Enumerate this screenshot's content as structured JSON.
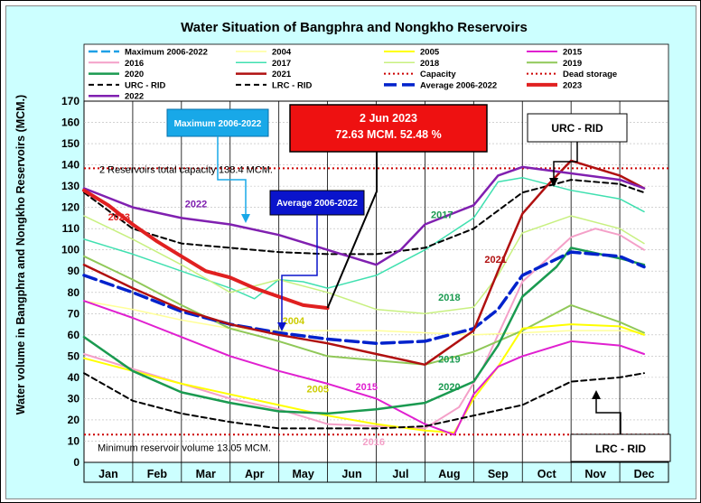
{
  "chart_data": {
    "type": "line",
    "title": "Water Situation of Bangphra and Nongkho Reservoirs",
    "ylabel": "Water volume in Bangphra and Nongkho Reservoirs (MCM.)",
    "xlabel": "",
    "ylim": [
      0,
      170
    ],
    "yticks": [
      0,
      10,
      20,
      30,
      40,
      50,
      60,
      70,
      80,
      90,
      100,
      110,
      120,
      130,
      140,
      150,
      160,
      170
    ],
    "months": [
      "Jan",
      "Feb",
      "Mar",
      "Apr",
      "May",
      "Jun",
      "Jul",
      "Aug",
      "Sep",
      "Oct",
      "Nov",
      "Dec"
    ],
    "grid": true,
    "legend_position": "top",
    "legend": [
      {
        "name": "Maximum 2006-2022",
        "color": "#1ea0e6",
        "dash": "10,4",
        "width": 2.5
      },
      {
        "name": "2004",
        "color": "#ffff99",
        "dash": "",
        "width": 1.5
      },
      {
        "name": "2005",
        "color": "#ffff00",
        "dash": "",
        "width": 2
      },
      {
        "name": "2015",
        "color": "#e020d0",
        "dash": "",
        "width": 2
      },
      {
        "name": "2016",
        "color": "#f4a0c8",
        "dash": "",
        "width": 2
      },
      {
        "name": "2017",
        "color": "#40e0b0",
        "dash": "",
        "width": 1.5
      },
      {
        "name": "2018",
        "color": "#c8f080",
        "dash": "",
        "width": 1.5
      },
      {
        "name": "2019",
        "color": "#90c858",
        "dash": "",
        "width": 2
      },
      {
        "name": "2020",
        "color": "#1a9a50",
        "dash": "",
        "width": 2.5
      },
      {
        "name": "2021",
        "color": "#b01010",
        "dash": "",
        "width": 2.5
      },
      {
        "name": "Capacity",
        "color": "#cc0000",
        "dash": "2,3",
        "width": 2
      },
      {
        "name": "Dead storage",
        "color": "#cc0000",
        "dash": "2,3",
        "width": 2
      },
      {
        "name": "URC - RID",
        "color": "#000000",
        "dash": "6,4",
        "width": 2
      },
      {
        "name": "LRC - RID",
        "color": "#000000",
        "dash": "6,4",
        "width": 2
      },
      {
        "name": "Average 2006-2022",
        "color": "#0022cc",
        "dash": "14,6",
        "width": 3.5
      },
      {
        "name": "2023",
        "color": "#e02020",
        "dash": "",
        "width": 4
      },
      {
        "name": "2022",
        "color": "#8020b0",
        "dash": "",
        "width": 2.5
      }
    ],
    "series": [
      {
        "name": "2016",
        "color": "#f4a0c8",
        "width": 2,
        "dash": "",
        "values": [
          [
            0,
            51
          ],
          [
            1,
            44
          ],
          [
            2,
            37
          ],
          [
            3,
            30
          ],
          [
            4,
            25
          ],
          [
            5,
            18
          ],
          [
            6,
            17
          ],
          [
            7,
            16
          ],
          [
            7.7,
            26
          ],
          [
            8.2,
            45
          ],
          [
            9,
            85
          ],
          [
            10,
            106
          ],
          [
            10.5,
            110
          ],
          [
            11,
            107
          ],
          [
            11.5,
            100
          ]
        ]
      },
      {
        "name": "2004",
        "color": "#ffff99",
        "width": 1.5,
        "dash": "",
        "values": [
          [
            0,
            76
          ],
          [
            1,
            72
          ],
          [
            2,
            67
          ],
          [
            3,
            63
          ],
          [
            4,
            62
          ],
          [
            5,
            62
          ],
          [
            6,
            62
          ],
          [
            7,
            61
          ],
          [
            8,
            60
          ],
          [
            9,
            61
          ],
          [
            10,
            62
          ],
          [
            11,
            62
          ],
          [
            11.5,
            61
          ]
        ]
      },
      {
        "name": "2017",
        "color": "#40e0b0",
        "width": 1.5,
        "dash": "",
        "values": [
          [
            0,
            105
          ],
          [
            1,
            98
          ],
          [
            2,
            90
          ],
          [
            3,
            82
          ],
          [
            3.5,
            77
          ],
          [
            4,
            86
          ],
          [
            4.5,
            85
          ],
          [
            5,
            82
          ],
          [
            6,
            88
          ],
          [
            7,
            100
          ],
          [
            8,
            115
          ],
          [
            8.5,
            132
          ],
          [
            9,
            134
          ],
          [
            10,
            128
          ],
          [
            11,
            124
          ],
          [
            11.5,
            118
          ]
        ]
      },
      {
        "name": "2018",
        "color": "#c8f080",
        "width": 1.5,
        "dash": "",
        "values": [
          [
            0,
            116
          ],
          [
            1,
            105
          ],
          [
            2,
            93
          ],
          [
            3,
            80
          ],
          [
            4,
            86
          ],
          [
            5,
            80
          ],
          [
            6,
            72
          ],
          [
            7,
            70
          ],
          [
            8,
            73
          ],
          [
            8.5,
            88
          ],
          [
            9,
            108
          ],
          [
            10,
            116
          ],
          [
            11,
            110
          ],
          [
            11.5,
            103
          ]
        ]
      },
      {
        "name": "2019",
        "color": "#90c858",
        "width": 2,
        "dash": "",
        "values": [
          [
            0,
            97
          ],
          [
            1,
            86
          ],
          [
            2,
            74
          ],
          [
            3,
            63
          ],
          [
            4,
            57
          ],
          [
            5,
            50
          ],
          [
            6,
            48
          ],
          [
            7,
            46
          ],
          [
            8,
            52
          ],
          [
            9,
            62
          ],
          [
            10,
            74
          ],
          [
            11,
            66
          ],
          [
            11.5,
            61
          ]
        ]
      },
      {
        "name": "2005",
        "color": "#ffff00",
        "width": 2,
        "dash": "",
        "values": [
          [
            0,
            49
          ],
          [
            1,
            43
          ],
          [
            2,
            37
          ],
          [
            3,
            32
          ],
          [
            4,
            27
          ],
          [
            5,
            22
          ],
          [
            6,
            18
          ],
          [
            7,
            15
          ],
          [
            7.6,
            14
          ],
          [
            8,
            30
          ],
          [
            8.5,
            45
          ],
          [
            9,
            63
          ],
          [
            10,
            65
          ],
          [
            11,
            64
          ],
          [
            11.5,
            60
          ]
        ]
      },
      {
        "name": "2015",
        "color": "#e020d0",
        "width": 2,
        "dash": "",
        "values": [
          [
            0,
            76
          ],
          [
            1,
            68
          ],
          [
            2,
            59
          ],
          [
            3,
            50
          ],
          [
            4,
            43
          ],
          [
            5,
            37
          ],
          [
            6,
            30
          ],
          [
            7,
            18
          ],
          [
            7.6,
            13
          ],
          [
            8,
            32
          ],
          [
            8.5,
            45
          ],
          [
            9,
            50
          ],
          [
            10,
            57
          ],
          [
            11,
            55
          ],
          [
            11.5,
            51
          ]
        ]
      },
      {
        "name": "2020",
        "color": "#1a9a50",
        "width": 2.5,
        "dash": "",
        "values": [
          [
            0,
            59
          ],
          [
            1,
            43
          ],
          [
            2,
            33
          ],
          [
            3,
            28
          ],
          [
            4,
            24
          ],
          [
            5,
            23
          ],
          [
            6,
            25
          ],
          [
            7,
            28
          ],
          [
            8,
            38
          ],
          [
            8.5,
            55
          ],
          [
            9,
            78
          ],
          [
            9.7,
            92
          ],
          [
            10,
            101
          ],
          [
            11,
            96
          ],
          [
            11.5,
            93
          ]
        ]
      },
      {
        "name": "URC - RID",
        "color": "#000000",
        "width": 2,
        "dash": "6,4",
        "values": [
          [
            0,
            127
          ],
          [
            1,
            110
          ],
          [
            2,
            103
          ],
          [
            3,
            101
          ],
          [
            4,
            99
          ],
          [
            5,
            98
          ],
          [
            6,
            98
          ],
          [
            7,
            101
          ],
          [
            8,
            110
          ],
          [
            9,
            127
          ],
          [
            10,
            133
          ],
          [
            11,
            131
          ],
          [
            11.5,
            127
          ]
        ]
      },
      {
        "name": "LRC - RID",
        "color": "#000000",
        "width": 2,
        "dash": "6,4",
        "values": [
          [
            0,
            42
          ],
          [
            1,
            29
          ],
          [
            2,
            23
          ],
          [
            3,
            19
          ],
          [
            4,
            16
          ],
          [
            5,
            16
          ],
          [
            6,
            16
          ],
          [
            7,
            17
          ],
          [
            8,
            22
          ],
          [
            9,
            27
          ],
          [
            10,
            38
          ],
          [
            11,
            40
          ],
          [
            11.5,
            42
          ]
        ]
      },
      {
        "name": "Average 2006-2022",
        "color": "#0022cc",
        "width": 3.5,
        "dash": "14,6",
        "values": [
          [
            0,
            88
          ],
          [
            1,
            80
          ],
          [
            2,
            71
          ],
          [
            3,
            65
          ],
          [
            4,
            61
          ],
          [
            5,
            58
          ],
          [
            6,
            56
          ],
          [
            7,
            57
          ],
          [
            8,
            63
          ],
          [
            8.5,
            72
          ],
          [
            9,
            88
          ],
          [
            10,
            99
          ],
          [
            11,
            97
          ],
          [
            11.5,
            92
          ]
        ]
      },
      {
        "name": "2021",
        "color": "#b01010",
        "width": 2.5,
        "dash": "",
        "values": [
          [
            0,
            93
          ],
          [
            1,
            82
          ],
          [
            2,
            72
          ],
          [
            3,
            65
          ],
          [
            4,
            60
          ],
          [
            5,
            56
          ],
          [
            6,
            51
          ],
          [
            7,
            46
          ],
          [
            8,
            62
          ],
          [
            8.5,
            90
          ],
          [
            9,
            117
          ],
          [
            9.5,
            130
          ],
          [
            10,
            142
          ],
          [
            11,
            135
          ],
          [
            11.5,
            129
          ]
        ]
      },
      {
        "name": "2022",
        "color": "#8020b0",
        "width": 2.5,
        "dash": "",
        "values": [
          [
            0,
            129
          ],
          [
            1,
            120
          ],
          [
            2,
            115
          ],
          [
            3,
            112
          ],
          [
            4,
            107
          ],
          [
            5,
            100
          ],
          [
            6,
            93
          ],
          [
            6.5,
            100
          ],
          [
            7,
            112
          ],
          [
            8,
            121
          ],
          [
            8.5,
            135
          ],
          [
            9,
            139
          ],
          [
            10,
            136
          ],
          [
            11,
            133
          ],
          [
            11.5,
            129
          ]
        ]
      },
      {
        "name": "2023",
        "color": "#e02020",
        "width": 4,
        "dash": "",
        "values": [
          [
            0,
            128
          ],
          [
            0.5,
            121
          ],
          [
            1,
            112
          ],
          [
            1.5,
            104
          ],
          [
            2,
            97
          ],
          [
            2.5,
            90
          ],
          [
            3,
            87
          ],
          [
            3.5,
            82
          ],
          [
            4,
            78
          ],
          [
            4.5,
            74
          ],
          [
            5,
            72.63
          ]
        ]
      }
    ],
    "capacity_line": 138.4,
    "dead_storage_line": 13.05,
    "callouts": [
      {
        "id": "current",
        "text_line1": "2 Jun 2023",
        "text_line2": "72.63 MCM. 52.48 %"
      },
      {
        "id": "max",
        "text": "Maximum 2006-2022"
      },
      {
        "id": "avg",
        "text": "Average 2006-2022"
      },
      {
        "id": "urc",
        "text": "URC - RID"
      },
      {
        "id": "lrc",
        "text": "LRC - RID"
      }
    ],
    "annotations": {
      "capacity_text": "2 Reservoirs total capacity 138.4 MCM.",
      "min_text": "Minimum reservoir volume 13.05 MCM."
    },
    "series_labels": [
      {
        "text": "2022",
        "color": "#8020b0",
        "x": 2.3,
        "y": 120
      },
      {
        "text": "2023",
        "color": "#e02020",
        "x": 0.72,
        "y": 114
      },
      {
        "text": "2017",
        "color": "#1a9a50",
        "x": 7.35,
        "y": 115
      },
      {
        "text": "2021",
        "color": "#b01010",
        "x": 8.45,
        "y": 94
      },
      {
        "text": "2018",
        "color": "#1a9a50",
        "x": 7.5,
        "y": 76
      },
      {
        "text": "2004",
        "color": "#cccc00",
        "x": 4.3,
        "y": 65
      },
      {
        "text": "2019",
        "color": "#1a9a50",
        "x": 7.5,
        "y": 47
      },
      {
        "text": "2005",
        "color": "#cccc00",
        "x": 4.8,
        "y": 33
      },
      {
        "text": "2015",
        "color": "#e020d0",
        "x": 5.8,
        "y": 34
      },
      {
        "text": "2020",
        "color": "#1a9a50",
        "x": 7.5,
        "y": 34
      },
      {
        "text": "2016",
        "color": "#f4a0c8",
        "x": 5.95,
        "y": 8
      }
    ]
  }
}
